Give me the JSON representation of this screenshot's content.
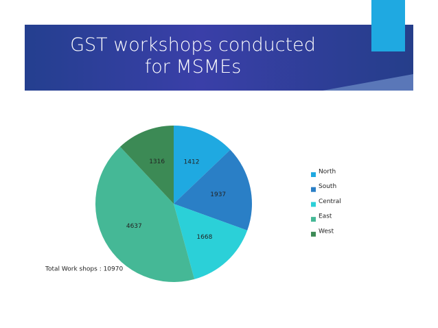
{
  "chart_data": {
    "type": "pie",
    "title": "GST workshops conducted for MSMEs",
    "categories": [
      "North",
      "South",
      "Central",
      "East",
      "West"
    ],
    "values": [
      1412,
      1937,
      1668,
      4637,
      1316
    ],
    "colors": [
      "#1fa9e1",
      "#2a7fc6",
      "#2bd0d8",
      "#45b896",
      "#3c8a55"
    ],
    "annotation": "Total Work shops : 10970",
    "legend": "right"
  }
}
